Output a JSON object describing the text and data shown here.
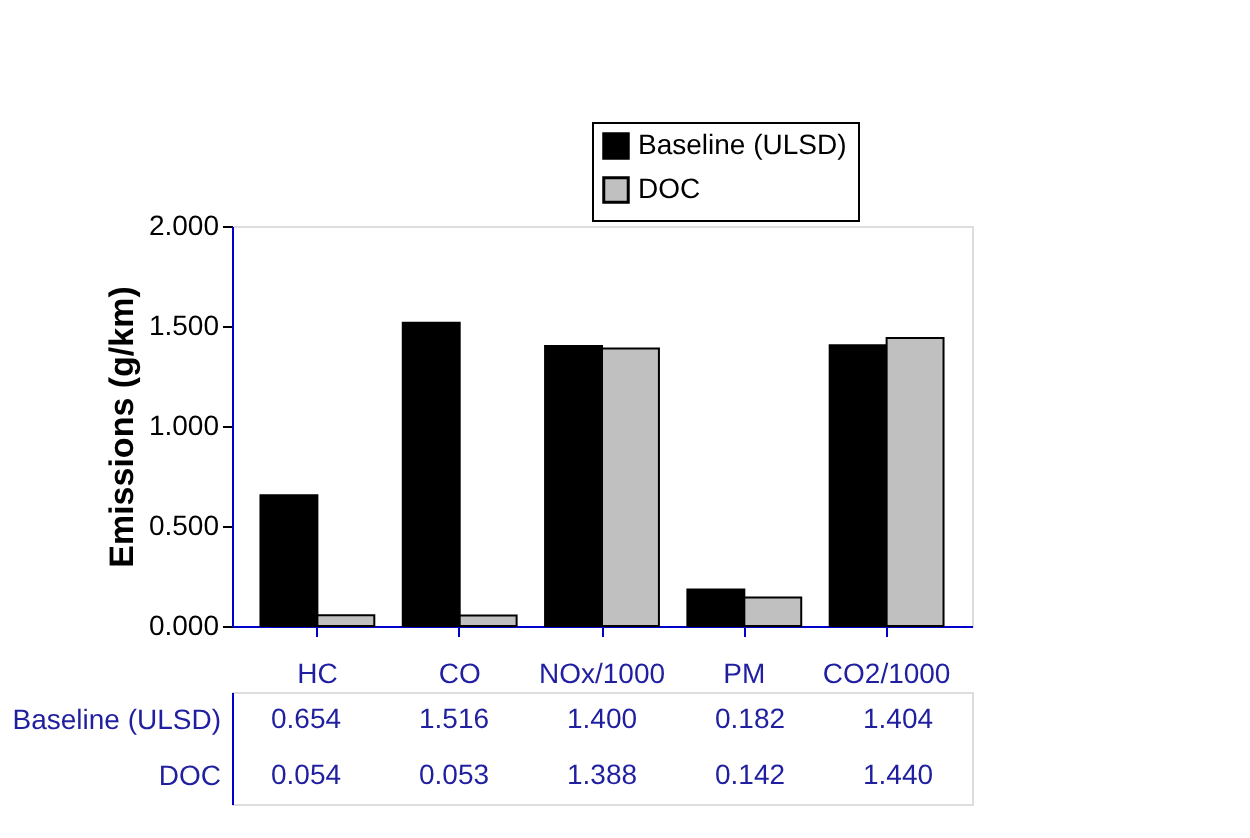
{
  "chart_data": {
    "type": "bar",
    "ylabel": "Emissions (g/km)",
    "categories": [
      "HC",
      "CO",
      "NOx/1000",
      "PM",
      "CO2/1000"
    ],
    "series": [
      {
        "name": "Baseline (ULSD)",
        "color": "#000000",
        "values": [
          0.654,
          1.516,
          1.4,
          0.182,
          1.404
        ],
        "value_labels": [
          "0.654",
          "1.516",
          "1.400",
          "0.182",
          "1.404"
        ]
      },
      {
        "name": "DOC",
        "color": "#c0c0c0",
        "values": [
          0.054,
          0.053,
          1.388,
          0.142,
          1.44
        ],
        "value_labels": [
          "0.054",
          "0.053",
          "1.388",
          "0.142",
          "1.440"
        ]
      }
    ],
    "ylim": [
      0,
      2
    ],
    "yticks": [
      {
        "value": 0,
        "label": "0.000"
      },
      {
        "value": 0.5,
        "label": "0.500"
      },
      {
        "value": 1,
        "label": "1.000"
      },
      {
        "value": 1.5,
        "label": "1.500"
      },
      {
        "value": 2,
        "label": "2.000"
      }
    ],
    "legend": "top right",
    "grid": false
  }
}
